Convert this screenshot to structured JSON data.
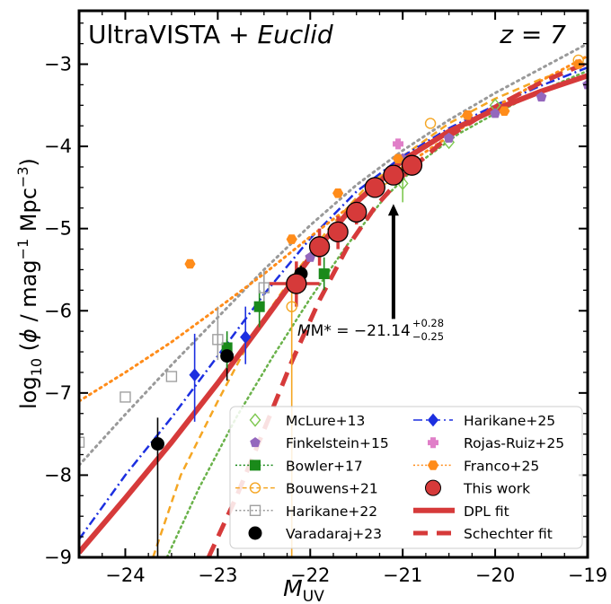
{
  "chart_data": {
    "type": "scatter",
    "title": "UltraVISTA + Euclid",
    "title_plain": "UltraVISTA + ",
    "title_italic": "Euclid",
    "redshift_label": "z = 7",
    "xlabel": "M_UV",
    "ylabel": "log10 (φ / mag^-1 Mpc^-3)",
    "xlim": [
      -24.5,
      -19.0
    ],
    "ylim": [
      -9.0,
      -2.35
    ],
    "xticks": [
      -24,
      -23,
      -22,
      -21,
      -20,
      -19
    ],
    "yticks": [
      -9,
      -8,
      -7,
      -6,
      -5,
      -4,
      -3
    ],
    "annotation": {
      "text": "M* = −21.14",
      "sup": "+0.28",
      "sub": "−0.25",
      "arrow_x": -21.1,
      "arrow_y_from": -6.1,
      "arrow_y_to": -4.7
    },
    "legend_position": "lower-right",
    "series": [
      {
        "name": "McLure+13",
        "color": "#7ec850",
        "marker": "diamond",
        "fill": false,
        "points": [
          [
            -21.0,
            -4.45
          ],
          [
            -20.5,
            -3.95
          ],
          [
            -20.0,
            -3.5
          ]
        ]
      },
      {
        "name": "Finkelstein+15",
        "color": "#9467bd",
        "marker": "pentagon",
        "fill": true,
        "points": [
          [
            -22.0,
            -5.35
          ],
          [
            -21.5,
            -4.85
          ],
          [
            -21.0,
            -4.15
          ],
          [
            -20.5,
            -3.9
          ],
          [
            -20.0,
            -3.6
          ],
          [
            -19.5,
            -3.4
          ],
          [
            -19.0,
            -3.25
          ]
        ]
      },
      {
        "name": "Bowler+17",
        "color": "#1a8a1a",
        "marker": "square",
        "fill": true,
        "points": [
          [
            -22.9,
            -6.45
          ],
          [
            -22.55,
            -5.95
          ],
          [
            -21.85,
            -5.55
          ]
        ]
      },
      {
        "name": "Bouwens+21",
        "color": "#f5a623",
        "marker": "circle",
        "fill": false,
        "points": [
          [
            -22.2,
            -5.95
          ],
          [
            -21.2,
            -4.4
          ],
          [
            -20.7,
            -3.72
          ],
          [
            -19.1,
            -2.95
          ]
        ]
      },
      {
        "name": "Harikane+22",
        "color": "#a0a0a0",
        "marker": "square",
        "fill": false,
        "points": [
          [
            -24.5,
            -7.6
          ],
          [
            -24.0,
            -7.05
          ],
          [
            -23.5,
            -6.8
          ],
          [
            -23.0,
            -6.35
          ],
          [
            -22.5,
            -5.72
          ]
        ]
      },
      {
        "name": "Varadaraj+23",
        "color": "#000000",
        "marker": "circle",
        "fill": true,
        "points": [
          [
            -23.65,
            -7.62
          ],
          [
            -22.9,
            -6.55
          ],
          [
            -22.1,
            -5.55
          ]
        ]
      },
      {
        "name": "Harikane+25",
        "color": "#1c2fe0",
        "marker": "diamond",
        "fill": true,
        "points": [
          [
            -23.25,
            -6.78
          ],
          [
            -22.7,
            -6.32
          ]
        ]
      },
      {
        "name": "Rojas-Ruiz+25",
        "color": "#e07fc8",
        "marker": "plus",
        "fill": true,
        "points": [
          [
            -21.05,
            -3.97
          ]
        ]
      },
      {
        "name": "Franco+25",
        "color": "#ff8c1a",
        "marker": "hexagon",
        "fill": true,
        "points": [
          [
            -23.3,
            -5.43
          ],
          [
            -22.2,
            -5.13
          ],
          [
            -21.7,
            -4.57
          ],
          [
            -21.05,
            -4.15
          ],
          [
            -20.3,
            -3.62
          ],
          [
            -19.9,
            -3.57
          ],
          [
            -19.1,
            -3.0
          ]
        ]
      },
      {
        "name": "This work",
        "color": "#d63a3a",
        "marker": "circle",
        "fill": true,
        "points": [
          [
            -22.15,
            -5.67
          ],
          [
            -21.9,
            -5.22
          ],
          [
            -21.7,
            -5.04
          ],
          [
            -21.5,
            -4.8
          ],
          [
            -21.3,
            -4.5
          ],
          [
            -21.1,
            -4.35
          ],
          [
            -20.9,
            -4.23
          ]
        ]
      },
      {
        "name": "DPL fit",
        "color": "#d63a3a",
        "line": "solid",
        "width": 6,
        "x": [
          -24.5,
          -24.0,
          -23.5,
          -23.0,
          -22.5,
          -22.0,
          -21.5,
          -21.0,
          -20.5,
          -20.0,
          -19.5,
          -19.0
        ],
        "y": [
          -8.94,
          -8.28,
          -7.6,
          -6.88,
          -6.12,
          -5.35,
          -4.68,
          -4.17,
          -3.82,
          -3.55,
          -3.33,
          -3.14
        ]
      },
      {
        "name": "Schechter fit",
        "color": "#d63a3a",
        "line": "dashed",
        "width": 5,
        "x": [
          -23.1,
          -22.8,
          -22.5,
          -22.2,
          -21.9,
          -21.6,
          -21.3,
          -21.0,
          -20.5,
          -20.0,
          -19.5,
          -19.0
        ],
        "y": [
          -9.0,
          -8.27,
          -7.45,
          -6.62,
          -5.87,
          -5.23,
          -4.74,
          -4.36,
          -3.88,
          -3.52,
          -3.22,
          -2.98
        ]
      },
      {
        "name": "Bowler+17 fit",
        "color": "#6ab24a",
        "line": "dotted",
        "width": 2.5,
        "legend": false,
        "x": [
          -23.55,
          -23.2,
          -22.8,
          -22.4,
          -22.0,
          -21.6,
          -21.2,
          -20.8,
          -20.4,
          -20.0,
          -19.5,
          -19.0
        ],
        "y": [
          -9.0,
          -8.15,
          -7.3,
          -6.55,
          -5.85,
          -5.2,
          -4.63,
          -4.18,
          -3.85,
          -3.6,
          -3.32,
          -3.08
        ]
      },
      {
        "name": "Bouwens+21 fit",
        "color": "#f5a623",
        "line": "dashed",
        "width": 2.5,
        "legend": false,
        "x": [
          -23.7,
          -23.4,
          -23.0,
          -22.6,
          -22.2,
          -21.8,
          -21.4,
          -21.0,
          -20.5,
          -20.0,
          -19.5,
          -19.0
        ],
        "y": [
          -9.0,
          -8.0,
          -7.1,
          -6.25,
          -5.6,
          -5.0,
          -4.5,
          -4.12,
          -3.72,
          -3.42,
          -3.18,
          -2.98
        ]
      },
      {
        "name": "Harikane+22 fit",
        "color": "#999999",
        "line": "dotted",
        "width": 3,
        "legend": false,
        "x": [
          -24.5,
          -24.0,
          -23.5,
          -23.0,
          -22.5,
          -22.0,
          -21.5,
          -21.0,
          -20.5,
          -20.0,
          -19.5,
          -19.0
        ],
        "y": [
          -7.88,
          -7.26,
          -6.66,
          -6.08,
          -5.5,
          -4.96,
          -4.47,
          -4.05,
          -3.68,
          -3.35,
          -3.05,
          -2.75
        ]
      },
      {
        "name": "Harikane+25 fit",
        "color": "#1c2fe0",
        "line": "dashdot",
        "width": 2.5,
        "legend": false,
        "x": [
          -24.5,
          -24.0,
          -23.5,
          -23.0,
          -22.5,
          -22.0,
          -21.5,
          -21.0,
          -20.5,
          -20.0,
          -19.5,
          -19.0
        ],
        "y": [
          -8.78,
          -8.0,
          -7.3,
          -6.55,
          -5.8,
          -5.12,
          -4.55,
          -4.12,
          -3.78,
          -3.5,
          -3.26,
          -3.04
        ]
      },
      {
        "name": "Franco+25 fit",
        "color": "#ff8c1a",
        "line": "dotted",
        "width": 3,
        "legend": false,
        "x": [
          -24.5,
          -24.0,
          -23.5,
          -23.0,
          -22.5,
          -22.0,
          -21.5,
          -21.0,
          -20.5,
          -20.0,
          -19.5,
          -19.0
        ],
        "y": [
          -7.1,
          -6.75,
          -6.38,
          -5.97,
          -5.55,
          -5.1,
          -4.67,
          -4.25,
          -3.88,
          -3.52,
          -3.2,
          -2.9
        ]
      }
    ],
    "error_bars": [
      {
        "series": "Varadaraj+23",
        "x": -23.65,
        "y_low": -9.0,
        "y_high": -7.3
      },
      {
        "series": "Varadaraj+23",
        "x": -22.9,
        "y_low": -6.85,
        "y_high": -6.35
      },
      {
        "series": "Varadaraj+23",
        "x": -22.1,
        "y_low": -5.7,
        "y_high": -5.45
      },
      {
        "series": "Harikane+25",
        "x": -23.25,
        "y_low": -7.35,
        "y_high": -6.28
      },
      {
        "series": "Harikane+25",
        "x": -22.7,
        "y_low": -6.65,
        "y_high": -5.95
      },
      {
        "series": "Harikane+22",
        "x": -23.0,
        "y_low": -6.6,
        "y_high": -5.95
      },
      {
        "series": "Harikane+22",
        "x": -22.5,
        "y_low": -5.95,
        "y_high": -5.5
      },
      {
        "series": "Bouwens+21",
        "x": -22.2,
        "y_low": -9.0,
        "y_high": -5.75
      },
      {
        "series": "Bowler+17",
        "x": -22.9,
        "y_low": -6.7,
        "y_high": -6.25
      },
      {
        "series": "Bowler+17",
        "x": -22.55,
        "y_low": -6.2,
        "y_high": -5.75
      },
      {
        "series": "Bowler+17",
        "x": -21.85,
        "y_low": -5.75,
        "y_high": -5.35
      },
      {
        "series": "McLure+13",
        "x": -21.0,
        "y_low": -4.68,
        "y_high": -4.27
      },
      {
        "series": "This work",
        "x": -22.15,
        "y_low": -5.95,
        "y_high": -5.4,
        "x_low": -22.45,
        "x_high": -21.9
      },
      {
        "series": "This work",
        "x": -21.9,
        "y_low": -5.45,
        "y_high": -5.0
      },
      {
        "series": "This work",
        "x": -21.7,
        "y_low": -5.25,
        "y_high": -4.85
      },
      {
        "series": "This work",
        "x": -21.5,
        "y_low": -4.95,
        "y_high": -4.65
      },
      {
        "series": "This work",
        "x": -21.3,
        "y_low": -4.62,
        "y_high": -4.38
      }
    ]
  }
}
